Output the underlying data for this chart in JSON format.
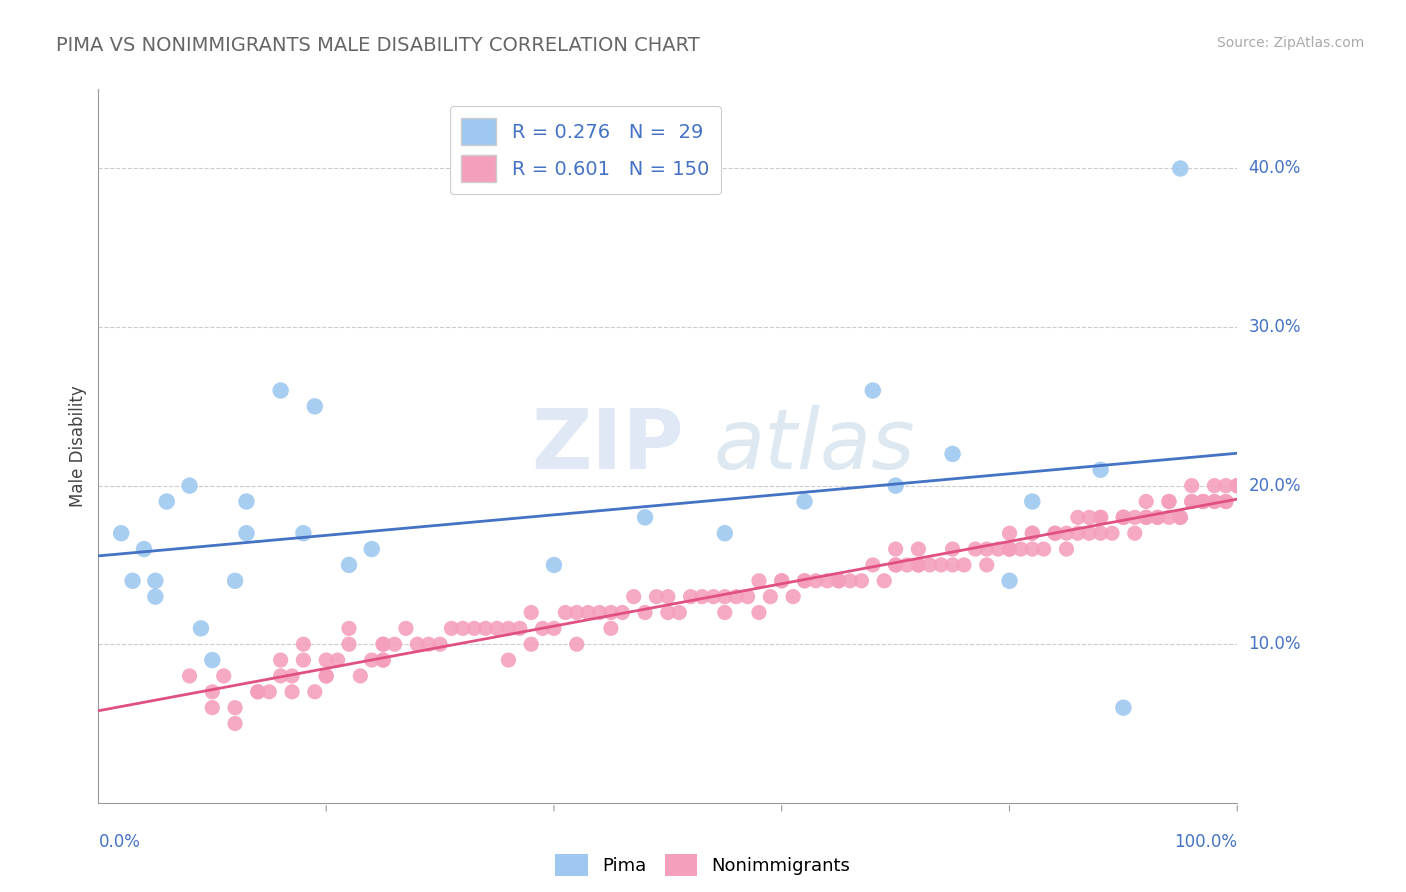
{
  "title": "PIMA VS NONIMMIGRANTS MALE DISABILITY CORRELATION CHART",
  "source": "Source: ZipAtlas.com",
  "ylabel": "Male Disability",
  "xlim": [
    0,
    100
  ],
  "ylim": [
    0,
    45
  ],
  "ytick_values": [
    10,
    20,
    30,
    40
  ],
  "legend_pima_r": "0.276",
  "legend_pima_n": "29",
  "legend_nonimm_r": "0.601",
  "legend_nonimm_n": "150",
  "pima_color": "#9ec8f0",
  "nonimm_color": "#f4a0bc",
  "pima_line_color": "#4472c4",
  "nonimm_line_color": "#e05080",
  "grid_color": "#cccccc",
  "title_color": "#666666",
  "label_color": "#4472c4",
  "pima_x": [
    2,
    3,
    4,
    5,
    5,
    6,
    8,
    9,
    10,
    12,
    13,
    13,
    16,
    18,
    19,
    22,
    24,
    40,
    48,
    55,
    62,
    68,
    70,
    75,
    80,
    82,
    88,
    90,
    95
  ],
  "pima_y": [
    17,
    14,
    16,
    14,
    13,
    19,
    20,
    11,
    9,
    14,
    17,
    19,
    26,
    17,
    25,
    15,
    16,
    15,
    18,
    17,
    19,
    26,
    20,
    22,
    14,
    19,
    21,
    6,
    40
  ],
  "nonimm_x": [
    8,
    10,
    11,
    12,
    12,
    14,
    15,
    16,
    16,
    17,
    18,
    18,
    19,
    20,
    20,
    21,
    22,
    22,
    23,
    24,
    25,
    25,
    26,
    27,
    28,
    29,
    30,
    31,
    32,
    33,
    34,
    35,
    36,
    37,
    38,
    39,
    40,
    41,
    42,
    43,
    44,
    45,
    46,
    47,
    48,
    49,
    50,
    51,
    52,
    53,
    54,
    55,
    56,
    57,
    58,
    59,
    60,
    61,
    62,
    63,
    64,
    65,
    66,
    67,
    68,
    69,
    70,
    71,
    72,
    73,
    74,
    75,
    76,
    77,
    78,
    79,
    80,
    81,
    82,
    83,
    84,
    85,
    86,
    87,
    88,
    89,
    90,
    91,
    92,
    93,
    94,
    95,
    96,
    97,
    98,
    99,
    100,
    14,
    20,
    38,
    42,
    50,
    58,
    65,
    70,
    72,
    75,
    78,
    80,
    82,
    84,
    86,
    88,
    90,
    92,
    94,
    96,
    98,
    99,
    100,
    87,
    91,
    93,
    95,
    97,
    99,
    10,
    17,
    25,
    60,
    70,
    82,
    85,
    88,
    90,
    92,
    94,
    96,
    98,
    100,
    25,
    36,
    45,
    55,
    62,
    72,
    80,
    90,
    97,
    100
  ],
  "nonimm_y": [
    8,
    7,
    8,
    5,
    6,
    7,
    7,
    8,
    9,
    8,
    10,
    9,
    7,
    9,
    8,
    9,
    10,
    11,
    8,
    9,
    9,
    10,
    10,
    11,
    10,
    10,
    10,
    11,
    11,
    11,
    11,
    11,
    11,
    11,
    12,
    11,
    11,
    12,
    12,
    12,
    12,
    12,
    12,
    13,
    12,
    13,
    13,
    12,
    13,
    13,
    13,
    13,
    13,
    13,
    14,
    13,
    14,
    13,
    14,
    14,
    14,
    14,
    14,
    14,
    15,
    14,
    15,
    15,
    15,
    15,
    15,
    15,
    15,
    16,
    15,
    16,
    16,
    16,
    16,
    16,
    17,
    16,
    17,
    17,
    17,
    17,
    18,
    17,
    18,
    18,
    18,
    18,
    19,
    19,
    19,
    19,
    20,
    7,
    8,
    10,
    10,
    12,
    12,
    14,
    15,
    16,
    16,
    16,
    17,
    17,
    17,
    18,
    18,
    18,
    19,
    19,
    20,
    20,
    20,
    20,
    18,
    18,
    18,
    18,
    19,
    19,
    6,
    7,
    10,
    14,
    16,
    17,
    17,
    18,
    18,
    18,
    19,
    19,
    19,
    20,
    9,
    9,
    11,
    12,
    14,
    15,
    16,
    18,
    19,
    20
  ],
  "watermark_zip": "ZIP",
  "watermark_atlas": "atlas",
  "background_color": "#ffffff"
}
